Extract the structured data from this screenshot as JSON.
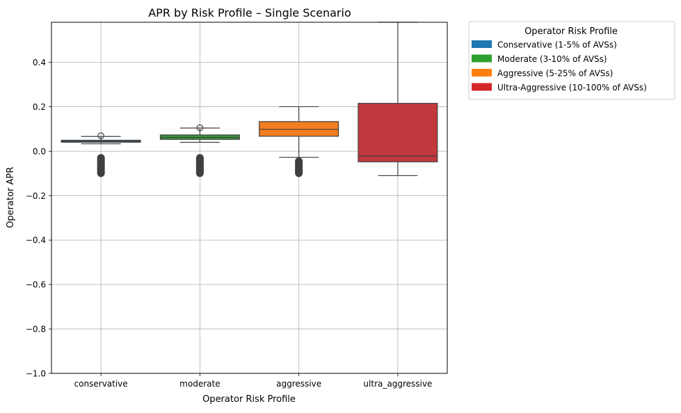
{
  "chart_data": {
    "type": "box",
    "title": "APR by Risk Profile – Single Scenario",
    "xlabel": "Operator Risk Profile",
    "ylabel": "Operator APR",
    "ylim": [
      -1.0,
      0.58
    ],
    "yticks": [
      -1.0,
      -0.8,
      -0.6,
      -0.4,
      -0.2,
      0.0,
      0.2,
      0.4
    ],
    "ytick_labels": [
      "−1.0",
      "−0.8",
      "−0.6",
      "−0.4",
      "−0.2",
      "0.0",
      "0.2",
      "0.4"
    ],
    "grid": true,
    "legend": {
      "title": "Operator Risk Profile",
      "placement": "outside-top-right",
      "entries": [
        {
          "label": "Conservative (1-5% of AVSs)",
          "color": "#1f77b4"
        },
        {
          "label": "Moderate (3-10% of AVSs)",
          "color": "#2ca02c"
        },
        {
          "label": "Aggressive (5-25% of AVSs)",
          "color": "#ff7f0e"
        },
        {
          "label": "Ultra-Aggressive (10-100% of AVSs)",
          "color": "#d62728"
        }
      ]
    },
    "categories": [
      "conservative",
      "moderate",
      "aggressive",
      "ultra_aggressive"
    ],
    "boxes": [
      {
        "category": "conservative",
        "color": "#3a6e93",
        "whisker_low": 0.033,
        "q1": 0.04,
        "median": 0.045,
        "q3": 0.049,
        "whisker_high": 0.066,
        "outliers_high": [
          0.069
        ],
        "outliers_low_range": [
          -0.115,
          -0.015
        ]
      },
      {
        "category": "moderate",
        "color": "#38963a",
        "whisker_low": 0.04,
        "q1": 0.053,
        "median": 0.062,
        "q3": 0.073,
        "whisker_high": 0.104,
        "outliers_high": [
          0.105
        ],
        "outliers_low_range": [
          -0.115,
          -0.015
        ]
      },
      {
        "category": "aggressive",
        "color": "#f27e20",
        "whisker_low": -0.028,
        "q1": 0.067,
        "median": 0.098,
        "q3": 0.133,
        "whisker_high": 0.2,
        "outliers_high": [],
        "outliers_low_range": [
          -0.115,
          -0.03
        ]
      },
      {
        "category": "ultra_aggressive",
        "color": "#c2393d",
        "whisker_low": -0.11,
        "q1": -0.048,
        "median": -0.022,
        "q3": 0.215,
        "whisker_high": 0.58,
        "outliers_high": [],
        "outliers_low_range": []
      }
    ]
  }
}
